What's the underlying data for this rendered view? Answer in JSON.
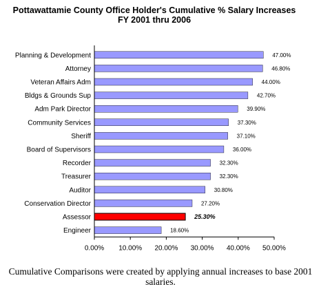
{
  "chart_data": {
    "type": "bar",
    "orientation": "horizontal",
    "title": "Pottawattamie County Office Holder's Cumulative % Salary Increases",
    "subtitle": "FY 2001 thru 2006",
    "categories": [
      "Planning & Development",
      "Attorney",
      "Veteran Affairs Adm",
      "Bldgs & Grounds Sup",
      "Adm Park Director",
      "Community Services",
      "Sheriff",
      "Board of Supervisors",
      "Recorder",
      "Treasurer",
      "Auditor",
      "Conservation Director",
      "Assessor",
      "Engineer"
    ],
    "values": [
      47.0,
      46.8,
      44.0,
      42.7,
      39.9,
      37.3,
      37.1,
      36.0,
      32.3,
      32.3,
      30.8,
      27.2,
      25.3,
      18.6
    ],
    "value_labels": [
      "47.00%",
      "46.80%",
      "44.00%",
      "42.70%",
      "39.90%",
      "37.30%",
      "37.10%",
      "36.00%",
      "32.30%",
      "32.30%",
      "30.80%",
      "27.20%",
      "25.30%",
      "18.60%"
    ],
    "highlight_index": 12,
    "xlim": [
      0,
      50
    ],
    "xticks": [
      "0.00%",
      "10.00%",
      "20.00%",
      "30.00%",
      "40.00%",
      "50.00%"
    ],
    "xlabel": "",
    "ylabel": "",
    "grid": false,
    "legend": "none",
    "colors": {
      "bar": "#9999ff",
      "highlight": "#ff0000",
      "bar_border": "#000000"
    }
  },
  "footnote": "Cumulative Comparisons were created by applying annual increases to base 2001 salaries."
}
